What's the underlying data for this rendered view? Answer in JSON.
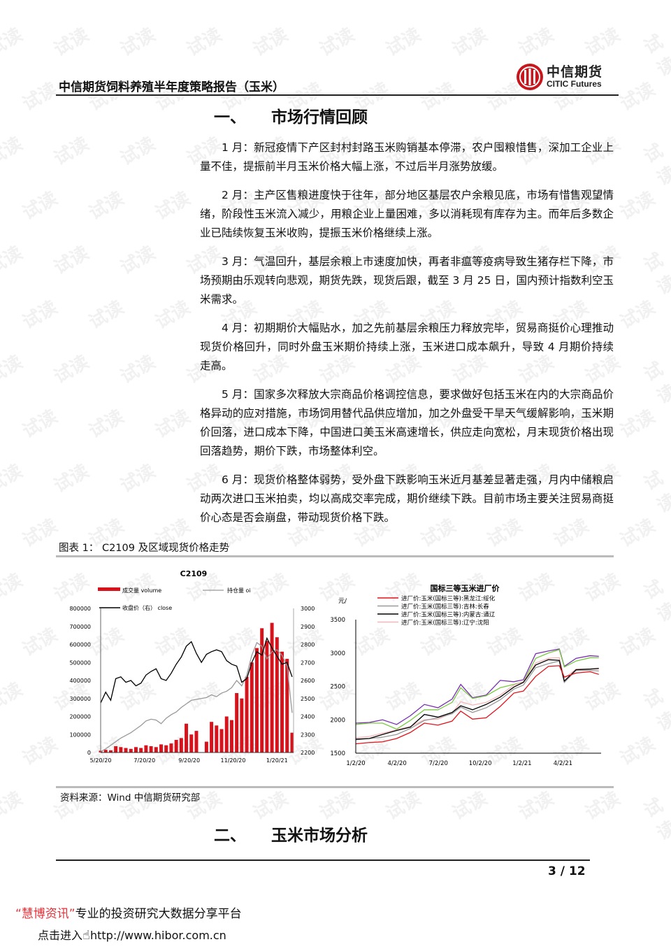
{
  "header": {
    "title": "中信期货饲料养殖半年度策略报告（玉米）",
    "logo_cn": "中信期货",
    "logo_en": "CITIC Futures"
  },
  "section1": {
    "num": "一、",
    "title": "市场行情回顾"
  },
  "paragraphs": [
    "1 月：新冠疫情下产区封村封路玉米购销基本停滞，农户囤粮惜售，深加工企业上量不佳，提振前半月玉米价格大幅上涨，不过后半月涨势放缓。",
    "2 月：主产区售粮进度快于往年，部分地区基层农户余粮见底，市场有惜售观望情绪，阶段性玉米流入减少，用粮企业上量困难，多以消耗现有库存为主。而年后多数企业已陆续恢复玉米收购，提振玉米价格继续上涨。",
    "3 月：气温回升，基层余粮上市速度加快，再者非瘟等疫病导致生猪存栏下降，市场预期由乐观转向悲观，期货先跌，现货后跟，截至 3 月 25 日，国内预计指数利空玉米需求。",
    "4 月：初期期价大幅贴水，加之先前基层余粮压力释放完毕，贸易商挺价心理推动现货价格回升，同时外盘玉米期价持续上涨，玉米进口成本飙升，导致 4 月期价持续走高。",
    "5 月：国家多次释放大宗商品价格调控信息，要求做好包括玉米在内的大宗商品价格异动的应对措施，市场饲用替代品供应增加，加之外盘受干旱天气缓解影响，玉米期价回落，进口成本下降，中国进口美玉米高速增长，供应走向宽松，月末现货价格出现回落趋势，期价下跌，市场整体利空。",
    "6 月：现货价格整体弱势，受外盘下跌影响玉米近月基差显著走强，月内中储粮启动两次进口玉米拍卖，均以高成交率完成，期价继续下跌。目前市场主要关注贸易商挺价心态是否会崩盘，带动现货价格下跌。"
  ],
  "figure": {
    "title": "图表 1：  C2109 及区域现货价格走势",
    "source": "资料来源：Wind 中信期货研究部"
  },
  "chart_data": [
    {
      "type": "bar+line",
      "title": "C2109",
      "legend": [
        "成交量 volume",
        "持仓量 oi",
        "收盘价（右） close"
      ],
      "legend_placement": "top",
      "colors": {
        "volume": "#d7121b",
        "oi": "#999999",
        "close": "#000000"
      },
      "x_ticks": [
        "5/20/20",
        "7/20/20",
        "9/20/20",
        "11/20/20",
        "1/20/21"
      ],
      "y_left_ticks": [
        "0",
        "100000",
        "200000",
        "300000",
        "400000",
        "500000",
        "600000",
        "700000",
        "800000"
      ],
      "y_right_ticks": [
        "2200",
        "2300",
        "2400",
        "2500",
        "2600",
        "2700",
        "2800",
        "2900",
        "3000"
      ],
      "ylim_left": [
        0,
        800000
      ],
      "ylim_right": [
        2200,
        3000
      ],
      "x": [
        "2020-05-20",
        "2020-05-27",
        "2020-06-03",
        "2020-06-10",
        "2020-06-17",
        "2020-06-24",
        "2020-07-01",
        "2020-07-08",
        "2020-07-15",
        "2020-07-22",
        "2020-07-29",
        "2020-08-05",
        "2020-08-12",
        "2020-08-19",
        "2020-08-26",
        "2020-09-02",
        "2020-09-09",
        "2020-09-16",
        "2020-09-23",
        "2020-09-30",
        "2020-10-07",
        "2020-10-14",
        "2020-10-21",
        "2020-10-28",
        "2020-11-04",
        "2020-11-11",
        "2020-11-18",
        "2020-11-25",
        "2020-12-02",
        "2020-12-09",
        "2020-12-16",
        "2020-12-23",
        "2020-12-30",
        "2021-01-06",
        "2021-01-13",
        "2021-01-20",
        "2021-01-27",
        "2021-02-03",
        "2021-02-10"
      ],
      "series": [
        {
          "name": "成交量 volume",
          "kind": "bar",
          "axis": "left",
          "values": [
            10000,
            15000,
            12000,
            35000,
            30000,
            25000,
            20000,
            30000,
            25000,
            40000,
            35000,
            30000,
            45000,
            40000,
            50000,
            70000,
            80000,
            160000,
            100000,
            120000,
            0,
            60000,
            170000,
            150000,
            130000,
            200000,
            180000,
            330000,
            300000,
            420000,
            500000,
            580000,
            690000,
            620000,
            720000,
            640000,
            560000,
            520000,
            110000
          ]
        },
        {
          "name": "持仓量 oi",
          "kind": "line",
          "axis": "left",
          "values": [
            5000,
            20000,
            40000,
            60000,
            80000,
            95000,
            110000,
            130000,
            150000,
            175000,
            185000,
            180000,
            160000,
            190000,
            210000,
            225000,
            250000,
            270000,
            290000,
            295000,
            300000,
            305000,
            320000,
            310000,
            330000,
            340000,
            360000,
            400000,
            370000,
            430000,
            540000,
            610000,
            590000,
            520000,
            560000,
            570000,
            540000,
            480000,
            220000
          ]
        },
        {
          "name": "收盘价（右） close",
          "kind": "line",
          "axis": "right",
          "values": [
            2475,
            2535,
            2490,
            2610,
            2620,
            2590,
            2600,
            2570,
            2585,
            2630,
            2650,
            2665,
            2610,
            2600,
            2640,
            2690,
            2730,
            2790,
            2815,
            2750,
            2700,
            2745,
            2760,
            2770,
            2760,
            2710,
            2690,
            2680,
            2590,
            2610,
            2700,
            2760,
            2740,
            2835,
            2780,
            2735,
            2690,
            2700,
            2620
          ]
        }
      ]
    },
    {
      "type": "line",
      "title": "国标三等玉米进厂价",
      "ylabel": "元/",
      "legend_placement": "top",
      "x_ticks": [
        "1/2/20",
        "4/2/20",
        "7/2/20",
        "10/2/20",
        "1/2/21",
        "4/2/21"
      ],
      "y_ticks": [
        "1500",
        "2000",
        "2500",
        "3000",
        "3500"
      ],
      "ylim": [
        1500,
        3500
      ],
      "x": [
        "2020-01-02",
        "2020-02-01",
        "2020-03-01",
        "2020-04-01",
        "2020-05-01",
        "2020-06-01",
        "2020-07-01",
        "2020-08-01",
        "2020-08-20",
        "2020-09-15",
        "2020-10-15",
        "2020-11-15",
        "2020-12-15",
        "2021-01-05",
        "2021-02-01",
        "2021-03-01",
        "2021-03-25",
        "2021-04-05",
        "2021-05-01",
        "2021-06-01",
        "2021-06-20"
      ],
      "series": [
        {
          "name": "进厂价:玉米(国标三等):黑龙江:绥化",
          "color": "#e0141c",
          "values": [
            1640,
            1660,
            1670,
            1720,
            1810,
            1950,
            1920,
            1980,
            2130,
            2010,
            2030,
            2200,
            2400,
            2430,
            2650,
            2800,
            2810,
            2640,
            2700,
            2720,
            2680
          ]
        },
        {
          "name": "进厂价:玉米(国标三等):吉林:长春",
          "color": "#999999",
          "values": [
            1700,
            1720,
            1740,
            1780,
            1870,
            1990,
            2030,
            2090,
            2190,
            2110,
            2180,
            2300,
            2460,
            2520,
            2780,
            2840,
            2880,
            2560,
            2740,
            2740,
            2730
          ]
        },
        {
          "name": "进厂价:玉米(国标三等):内蒙古:通辽",
          "color": "#000000",
          "values": [
            1710,
            1720,
            1780,
            1840,
            1890,
            2080,
            2040,
            2110,
            2210,
            2150,
            2230,
            2340,
            2490,
            2560,
            2820,
            2900,
            2890,
            2580,
            2750,
            2760,
            2770
          ]
        },
        {
          "name": "进厂价:玉米(国标三等):辽宁:沈阳",
          "color": "#f4b6b8",
          "values": [
            1730,
            1750,
            1800,
            1850,
            1900,
            2000,
            2010,
            2100,
            2270,
            2220,
            2260,
            2370,
            2520,
            2570,
            2850,
            2920,
            2930,
            2620,
            2760,
            2760,
            2760
          ]
        },
        {
          "color": "#7a2fb0",
          "values": [
            1950,
            1960,
            2000,
            1930,
            2060,
            2230,
            2180,
            2310,
            2530,
            2330,
            2370,
            2590,
            2570,
            2600,
            2990,
            3030,
            3060,
            2800,
            2920,
            2960,
            2950
          ]
        },
        {
          "color": "#7ac943",
          "values": [
            1930,
            1950,
            1950,
            1860,
            1990,
            2150,
            2150,
            2260,
            2480,
            2320,
            2360,
            2480,
            2530,
            2570,
            2920,
            3000,
            3050,
            2790,
            2880,
            2930,
            2930
          ]
        }
      ]
    }
  ],
  "section2": {
    "num": "二、",
    "title": "玉米市场分析"
  },
  "footer": {
    "page": "3 / 12",
    "promo_brand": "“慧博资讯”",
    "promo_text": "专业的投资研究大数据分享平台",
    "promo_enter": "点击进入",
    "promo_url": "http://www.hibor.com.cn"
  },
  "watermark": "试读"
}
